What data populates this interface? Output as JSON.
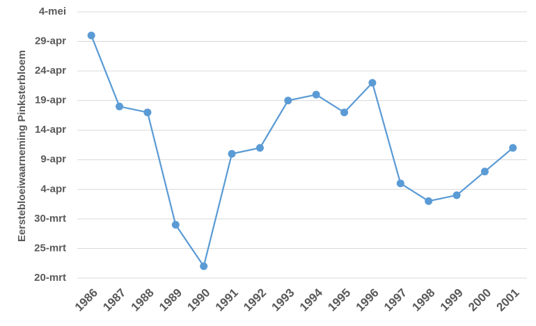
{
  "chart_data": {
    "type": "line",
    "y_label": "Eerstebloeiwaarneming Pinksterbloem",
    "categories": [
      "1986",
      "1987",
      "1988",
      "1989",
      "1990",
      "1991",
      "1992",
      "1993",
      "1994",
      "1995",
      "1996",
      "1997",
      "1998",
      "1999",
      "2000",
      "2001"
    ],
    "series": [
      {
        "name": "Pinksterbloem",
        "color": "#5b9bd5",
        "values": [
          120,
          108,
          107,
          88,
          81,
          100,
          101,
          109,
          110,
          107,
          112,
          95,
          92,
          93,
          97,
          101
        ]
      }
    ],
    "ylim": [
      79,
      124
    ],
    "yticks": [
      {
        "value": 79,
        "label": "20-mrt"
      },
      {
        "value": 84,
        "label": "25-mrt"
      },
      {
        "value": 89,
        "label": "30-mrt"
      },
      {
        "value": 94,
        "label": "4-apr"
      },
      {
        "value": 99,
        "label": "9-apr"
      },
      {
        "value": 104,
        "label": "14-apr"
      },
      {
        "value": 109,
        "label": "19-apr"
      },
      {
        "value": 114,
        "label": "24-apr"
      },
      {
        "value": 119,
        "label": "29-apr"
      },
      {
        "value": 124,
        "label": "4-mei"
      }
    ],
    "grid": true
  }
}
